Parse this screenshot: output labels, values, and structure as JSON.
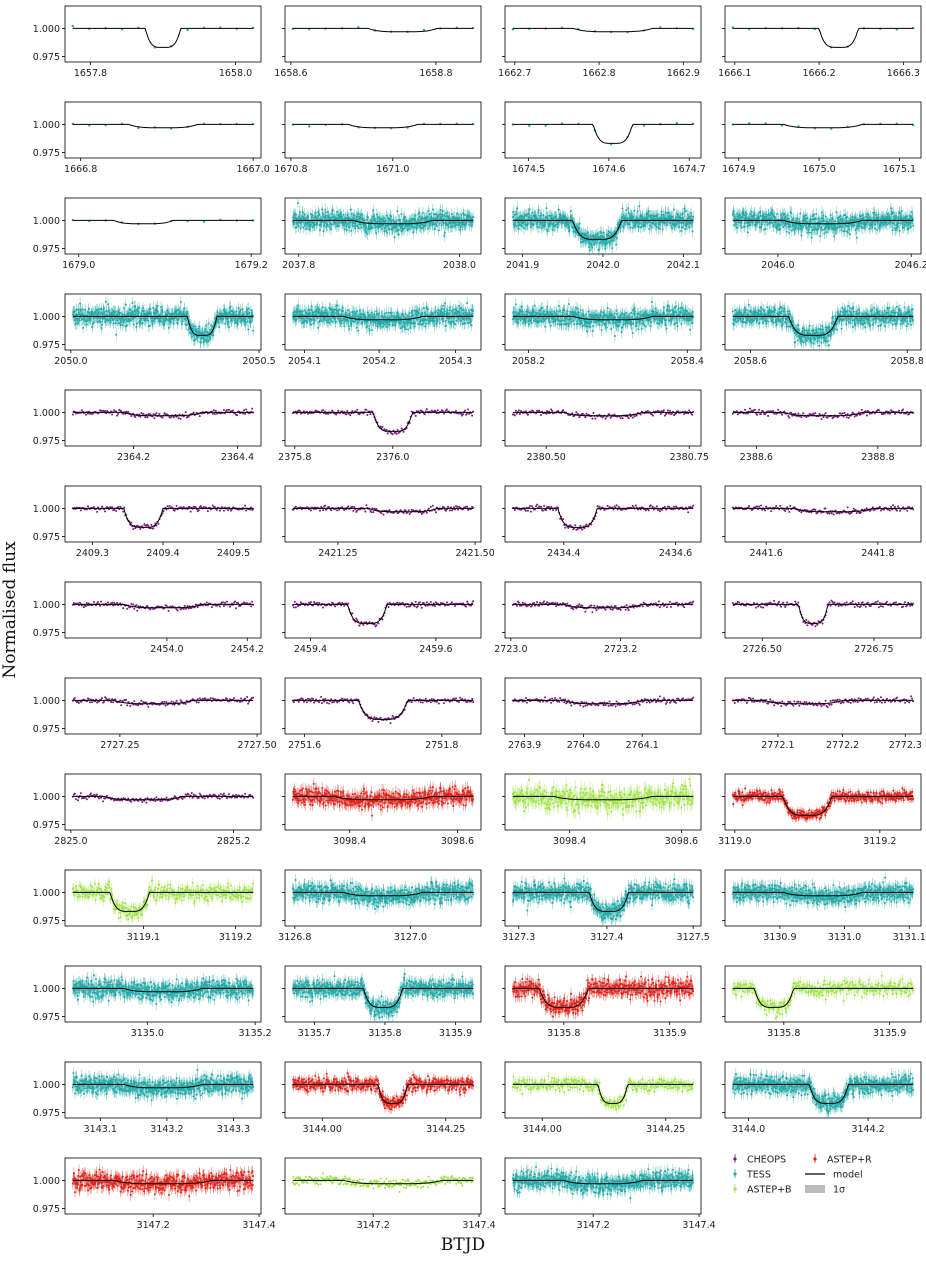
{
  "figure": {
    "xlabel": "BTJD",
    "ylabel": "Normalised flux",
    "yticks": [
      "1.000",
      "0.975"
    ],
    "legend": {
      "entries": [
        {
          "id": "CHEOPS",
          "label": "CHEOPS",
          "color": "#7b1a7e",
          "marker": "point"
        },
        {
          "id": "TESS",
          "label": "TESS",
          "color": "#22aaa8",
          "marker": "point"
        },
        {
          "id": "ASTEP+B",
          "label": "ASTEP+B",
          "color": "#9ee342",
          "marker": "point"
        },
        {
          "id": "ASTEP+R",
          "label": "ASTEP+R",
          "color": "#e2231a",
          "marker": "point"
        },
        {
          "id": "model",
          "label": "model",
          "color": "#000000",
          "marker": "line"
        },
        {
          "id": "band",
          "label": "1σ",
          "color": "#bbbbbb",
          "marker": "patch"
        }
      ],
      "placement": "bottom-right"
    }
  },
  "chart_data": {
    "type": "scatter",
    "ylim": [
      0.97,
      1.02
    ],
    "yticks": [
      1.0,
      0.975
    ],
    "panels": [
      {
        "inst": "TESS",
        "ticks": [
          "1657.8",
          "1658.0"
        ],
        "tickpos": [
          0.13,
          0.87
        ],
        "depth": 0.017,
        "center": 0.5,
        "width": 0.18,
        "noise": 0.0006,
        "n": 12
      },
      {
        "inst": "TESS",
        "ticks": [
          "1658.6",
          "1658.8"
        ],
        "tickpos": [
          0.03,
          0.77
        ],
        "depth": 0.003,
        "center": 0.6,
        "width": 0.35,
        "noise": 0.0006,
        "n": 12
      },
      {
        "inst": "TESS",
        "ticks": [
          "1662.7",
          "1662.8",
          "1662.9"
        ],
        "tickpos": [
          0.05,
          0.48,
          0.91
        ],
        "depth": 0.003,
        "center": 0.55,
        "width": 0.4,
        "noise": 0.0006,
        "n": 12
      },
      {
        "inst": "TESS",
        "ticks": [
          "1666.1",
          "1666.2",
          "1666.3"
        ],
        "tickpos": [
          0.05,
          0.48,
          0.91
        ],
        "depth": 0.017,
        "center": 0.58,
        "width": 0.2,
        "noise": 0.0006,
        "n": 12
      },
      {
        "inst": "TESS",
        "ticks": [
          "1666.8",
          "1667.0"
        ],
        "tickpos": [
          0.08,
          0.96
        ],
        "depth": 0.003,
        "center": 0.5,
        "width": 0.35,
        "noise": 0.0006,
        "n": 12
      },
      {
        "inst": "TESS",
        "ticks": [
          "1670.8",
          "1671.0"
        ],
        "tickpos": [
          0.03,
          0.55
        ],
        "depth": 0.003,
        "center": 0.5,
        "width": 0.35,
        "noise": 0.0006,
        "n": 12
      },
      {
        "inst": "TESS",
        "ticks": [
          "1674.5",
          "1674.6",
          "1674.7"
        ],
        "tickpos": [
          0.12,
          0.53,
          0.94
        ],
        "depth": 0.017,
        "center": 0.55,
        "width": 0.2,
        "noise": 0.0006,
        "n": 12
      },
      {
        "inst": "TESS",
        "ticks": [
          "1674.9",
          "1675.0",
          "1675.1"
        ],
        "tickpos": [
          0.07,
          0.48,
          0.89
        ],
        "depth": 0.003,
        "center": 0.5,
        "width": 0.4,
        "noise": 0.0006,
        "n": 12
      },
      {
        "inst": "TESS",
        "ticks": [
          "1679.0",
          "1679.2"
        ],
        "tickpos": [
          0.07,
          0.95
        ],
        "depth": 0.003,
        "center": 0.4,
        "width": 0.3,
        "noise": 0.0006,
        "n": 12
      },
      {
        "inst": "TESS",
        "ticks": [
          "2037.8",
          "2038.0"
        ],
        "tickpos": [
          0.07,
          0.89
        ],
        "depth": 0.003,
        "center": 0.55,
        "width": 0.4,
        "noise": 0.004,
        "n": 600
      },
      {
        "inst": "TESS",
        "ticks": [
          "2041.9",
          "2042.0",
          "2042.1"
        ],
        "tickpos": [
          0.09,
          0.5,
          0.91
        ],
        "depth": 0.017,
        "center": 0.47,
        "width": 0.25,
        "noise": 0.004,
        "n": 600
      },
      {
        "inst": "TESS",
        "ticks": [
          "2046.0",
          "2046.2"
        ],
        "tickpos": [
          0.27,
          0.95
        ],
        "depth": 0.003,
        "center": 0.5,
        "width": 0.4,
        "noise": 0.004,
        "n": 600
      },
      {
        "inst": "TESS",
        "ticks": [
          "2050.0",
          "2050.5"
        ],
        "tickpos": [
          0.03,
          0.99
        ],
        "depth": 0.017,
        "center": 0.7,
        "width": 0.15,
        "noise": 0.004,
        "n": 600
      },
      {
        "inst": "TESS",
        "ticks": [
          "2054.1",
          "2054.2",
          "2054.3"
        ],
        "tickpos": [
          0.1,
          0.48,
          0.87
        ],
        "depth": 0.003,
        "center": 0.5,
        "width": 0.4,
        "noise": 0.004,
        "n": 600
      },
      {
        "inst": "TESS",
        "ticks": [
          "2058.2",
          "2058.4"
        ],
        "tickpos": [
          0.12,
          0.93
        ],
        "depth": 0.003,
        "center": 0.55,
        "width": 0.4,
        "noise": 0.004,
        "n": 600
      },
      {
        "inst": "TESS",
        "ticks": [
          "2058.6",
          "2058.8"
        ],
        "tickpos": [
          0.13,
          0.93
        ],
        "depth": 0.017,
        "center": 0.45,
        "width": 0.25,
        "noise": 0.004,
        "n": 600
      },
      {
        "inst": "CHEOPS",
        "ticks": [
          "2364.2",
          "2364.4"
        ],
        "tickpos": [
          0.35,
          0.88
        ],
        "depth": 0.003,
        "center": 0.5,
        "width": 0.4,
        "noise": 0.0012,
        "n": 180
      },
      {
        "inst": "CHEOPS",
        "ticks": [
          "2375.8",
          "2376.0"
        ],
        "tickpos": [
          0.05,
          0.55
        ],
        "depth": 0.017,
        "center": 0.55,
        "width": 0.2,
        "noise": 0.0012,
        "n": 180
      },
      {
        "inst": "CHEOPS",
        "ticks": [
          "2380.50",
          "2380.75"
        ],
        "tickpos": [
          0.21,
          0.94
        ],
        "depth": 0.003,
        "center": 0.5,
        "width": 0.4,
        "noise": 0.0012,
        "n": 180
      },
      {
        "inst": "CHEOPS",
        "ticks": [
          "2388.6",
          "2388.8"
        ],
        "tickpos": [
          0.16,
          0.78
        ],
        "depth": 0.003,
        "center": 0.5,
        "width": 0.4,
        "noise": 0.0012,
        "n": 180
      },
      {
        "inst": "CHEOPS",
        "ticks": [
          "2409.3",
          "2409.4",
          "2409.5"
        ],
        "tickpos": [
          0.14,
          0.5,
          0.86
        ],
        "depth": 0.017,
        "center": 0.4,
        "width": 0.2,
        "noise": 0.0012,
        "n": 180
      },
      {
        "inst": "CHEOPS",
        "ticks": [
          "2421.25",
          "2421.50"
        ],
        "tickpos": [
          0.27,
          0.97
        ],
        "depth": 0.003,
        "center": 0.6,
        "width": 0.35,
        "noise": 0.0012,
        "n": 180
      },
      {
        "inst": "CHEOPS",
        "ticks": [
          "2434.4",
          "2434.6"
        ],
        "tickpos": [
          0.3,
          0.87
        ],
        "depth": 0.017,
        "center": 0.37,
        "width": 0.2,
        "noise": 0.0012,
        "n": 180
      },
      {
        "inst": "CHEOPS",
        "ticks": [
          "2441.6",
          "2441.8"
        ],
        "tickpos": [
          0.21,
          0.78
        ],
        "depth": 0.003,
        "center": 0.55,
        "width": 0.4,
        "noise": 0.0012,
        "n": 180
      },
      {
        "inst": "CHEOPS",
        "ticks": [
          "2454.0",
          "2454.2"
        ],
        "tickpos": [
          0.52,
          0.93
        ],
        "depth": 0.003,
        "center": 0.5,
        "width": 0.4,
        "noise": 0.0012,
        "n": 180
      },
      {
        "inst": "CHEOPS",
        "ticks": [
          "2459.4",
          "2459.6"
        ],
        "tickpos": [
          0.13,
          0.77
        ],
        "depth": 0.017,
        "center": 0.42,
        "width": 0.2,
        "noise": 0.0012,
        "n": 180
      },
      {
        "inst": "CHEOPS",
        "ticks": [
          "2723.0",
          "2723.2"
        ],
        "tickpos": [
          0.03,
          0.59
        ],
        "depth": 0.003,
        "center": 0.5,
        "width": 0.4,
        "noise": 0.0012,
        "n": 180
      },
      {
        "inst": "CHEOPS",
        "ticks": [
          "2726.50",
          "2726.75"
        ],
        "tickpos": [
          0.19,
          0.76
        ],
        "depth": 0.017,
        "center": 0.45,
        "width": 0.15,
        "noise": 0.0012,
        "n": 180
      },
      {
        "inst": "CHEOPS",
        "ticks": [
          "2727.25",
          "2727.50"
        ],
        "tickpos": [
          0.28,
          0.98
        ],
        "depth": 0.003,
        "center": 0.45,
        "width": 0.4,
        "noise": 0.0012,
        "n": 180
      },
      {
        "inst": "CHEOPS",
        "ticks": [
          "2751.6",
          "2751.8"
        ],
        "tickpos": [
          0.1,
          0.8
        ],
        "depth": 0.017,
        "center": 0.5,
        "width": 0.25,
        "noise": 0.0012,
        "n": 180
      },
      {
        "inst": "CHEOPS",
        "ticks": [
          "2763.9",
          "2764.0",
          "2764.1"
        ],
        "tickpos": [
          0.1,
          0.4,
          0.7
        ],
        "depth": 0.003,
        "center": 0.5,
        "width": 0.4,
        "noise": 0.0012,
        "n": 180
      },
      {
        "inst": "CHEOPS",
        "ticks": [
          "2772.1",
          "2772.2",
          "2772.3"
        ],
        "tickpos": [
          0.27,
          0.6,
          0.92
        ],
        "depth": 0.003,
        "center": 0.4,
        "width": 0.4,
        "noise": 0.0012,
        "n": 180
      },
      {
        "inst": "CHEOPS",
        "ticks": [
          "2825.0",
          "2825.2"
        ],
        "tickpos": [
          0.03,
          0.86
        ],
        "depth": 0.003,
        "center": 0.4,
        "width": 0.4,
        "noise": 0.0012,
        "n": 180
      },
      {
        "inst": "ASTEP+R",
        "ticks": [
          "3098.4",
          "3098.6"
        ],
        "tickpos": [
          0.33,
          0.88
        ],
        "depth": 0.003,
        "center": 0.5,
        "width": 0.5,
        "noise": 0.004,
        "n": 500
      },
      {
        "inst": "ASTEP+B",
        "ticks": [
          "3098.4",
          "3098.6"
        ],
        "tickpos": [
          0.33,
          0.9
        ],
        "depth": 0.003,
        "center": 0.5,
        "width": 0.5,
        "noise": 0.005,
        "n": 400
      },
      {
        "inst": "ASTEP+R",
        "ticks": [
          "3119.0",
          "3119.2"
        ],
        "tickpos": [
          0.05,
          0.79
        ],
        "depth": 0.017,
        "center": 0.42,
        "width": 0.25,
        "noise": 0.0025,
        "n": 500
      },
      {
        "inst": "ASTEP+B",
        "ticks": [
          "3119.1",
          "3119.2"
        ],
        "tickpos": [
          0.4,
          0.87
        ],
        "depth": 0.017,
        "center": 0.33,
        "width": 0.2,
        "noise": 0.0035,
        "n": 350
      },
      {
        "inst": "TESS",
        "ticks": [
          "3126.8",
          "3127.0"
        ],
        "tickpos": [
          0.05,
          0.64
        ],
        "depth": 0.003,
        "center": 0.5,
        "width": 0.4,
        "noise": 0.004,
        "n": 600
      },
      {
        "inst": "TESS",
        "ticks": [
          "3127.3",
          "3127.4",
          "3127.5"
        ],
        "tickpos": [
          0.07,
          0.52,
          0.96
        ],
        "depth": 0.017,
        "center": 0.53,
        "width": 0.2,
        "noise": 0.004,
        "n": 600
      },
      {
        "inst": "TESS",
        "ticks": [
          "3130.9",
          "3131.0",
          "3131.1"
        ],
        "tickpos": [
          0.28,
          0.61,
          0.94
        ],
        "depth": 0.003,
        "center": 0.5,
        "width": 0.4,
        "noise": 0.004,
        "n": 600
      },
      {
        "inst": "TESS",
        "ticks": [
          "3135.0",
          "3135.2"
        ],
        "tickpos": [
          0.42,
          0.97
        ],
        "depth": 0.003,
        "center": 0.5,
        "width": 0.4,
        "noise": 0.004,
        "n": 600
      },
      {
        "inst": "TESS",
        "ticks": [
          "3135.7",
          "3135.8",
          "3135.9"
        ],
        "tickpos": [
          0.15,
          0.51,
          0.87
        ],
        "depth": 0.017,
        "center": 0.5,
        "width": 0.2,
        "noise": 0.004,
        "n": 600
      },
      {
        "inst": "ASTEP+R",
        "ticks": [
          "3135.8",
          "3135.9"
        ],
        "tickpos": [
          0.3,
          0.84
        ],
        "depth": 0.017,
        "center": 0.3,
        "width": 0.25,
        "noise": 0.004,
        "n": 500
      },
      {
        "inst": "ASTEP+B",
        "ticks": [
          "3135.8",
          "3135.9"
        ],
        "tickpos": [
          0.3,
          0.84
        ],
        "depth": 0.017,
        "center": 0.25,
        "width": 0.2,
        "noise": 0.0035,
        "n": 300
      },
      {
        "inst": "TESS",
        "ticks": [
          "3143.1",
          "3143.2",
          "3143.3"
        ],
        "tickpos": [
          0.18,
          0.52,
          0.86
        ],
        "depth": 0.003,
        "center": 0.5,
        "width": 0.4,
        "noise": 0.004,
        "n": 600
      },
      {
        "inst": "ASTEP+R",
        "ticks": [
          "3144.00",
          "3144.25"
        ],
        "tickpos": [
          0.19,
          0.82
        ],
        "depth": 0.017,
        "center": 0.55,
        "width": 0.15,
        "noise": 0.003,
        "n": 500
      },
      {
        "inst": "ASTEP+B",
        "ticks": [
          "3144.00",
          "3144.25"
        ],
        "tickpos": [
          0.19,
          0.82
        ],
        "depth": 0.017,
        "center": 0.55,
        "width": 0.15,
        "noise": 0.003,
        "n": 300
      },
      {
        "inst": "TESS",
        "ticks": [
          "3144.0",
          "3144.2"
        ],
        "tickpos": [
          0.12,
          0.73
        ],
        "depth": 0.017,
        "center": 0.53,
        "width": 0.2,
        "noise": 0.004,
        "n": 600
      },
      {
        "inst": "ASTEP+R",
        "ticks": [
          "3147.2",
          "3147.4"
        ],
        "tickpos": [
          0.45,
          0.99
        ],
        "depth": 0.003,
        "center": 0.5,
        "width": 0.5,
        "noise": 0.004,
        "n": 500
      },
      {
        "inst": "ASTEP+B",
        "ticks": [
          "3147.2",
          "3147.4"
        ],
        "tickpos": [
          0.45,
          0.99
        ],
        "depth": 0.003,
        "center": 0.55,
        "width": 0.5,
        "noise": 0.002,
        "n": 300
      },
      {
        "inst": "TESS",
        "ticks": [
          "3147.2",
          "3147.4"
        ],
        "tickpos": [
          0.45,
          0.99
        ],
        "depth": 0.003,
        "center": 0.5,
        "width": 0.4,
        "noise": 0.004,
        "n": 600
      }
    ]
  }
}
